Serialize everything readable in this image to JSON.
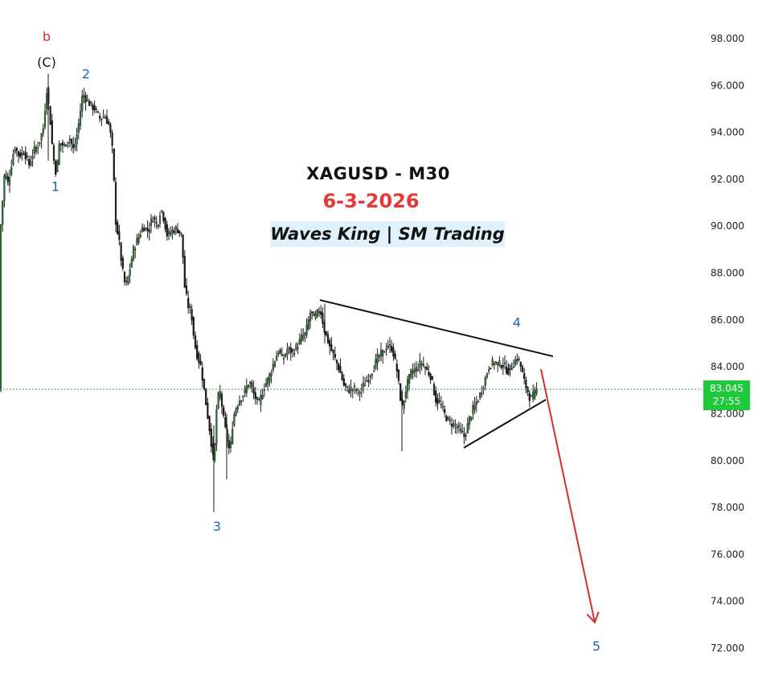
{
  "chart_data": {
    "type": "candlestick",
    "title": "XAGUSD - M30",
    "subtitle": "6-3-2026",
    "watermark": "Waves King | SM Trading",
    "ylim": [
      71.2,
      99.4
    ],
    "y_ticks": [
      "98.000",
      "96.000",
      "94.000",
      "92.000",
      "90.000",
      "88.000",
      "86.000",
      "84.000",
      "82.000",
      "80.000",
      "78.000",
      "76.000",
      "74.000",
      "72.000"
    ],
    "y_tick_values": [
      98,
      96,
      94,
      92,
      90,
      88,
      86,
      84,
      82,
      80,
      78,
      76,
      74,
      72
    ],
    "current_price": {
      "value": 83.045,
      "label": "83.045",
      "countdown": "27:55"
    },
    "price_path": [
      [
        0,
        89.6
      ],
      [
        6,
        92.4
      ],
      [
        10,
        91.8
      ],
      [
        18,
        93.4
      ],
      [
        24,
        93.0
      ],
      [
        30,
        93.2
      ],
      [
        36,
        92.6
      ],
      [
        42,
        93.2
      ],
      [
        48,
        93.5
      ],
      [
        54,
        94.2
      ],
      [
        58,
        95.9
      ],
      [
        62,
        94.7
      ],
      [
        66,
        93.0
      ],
      [
        70,
        92.2
      ],
      [
        74,
        93.6
      ],
      [
        80,
        93.4
      ],
      [
        86,
        93.8
      ],
      [
        92,
        93.2
      ],
      [
        98,
        94.4
      ],
      [
        103,
        95.7
      ],
      [
        107,
        95.4
      ],
      [
        112,
        95.2
      ],
      [
        118,
        95.0
      ],
      [
        124,
        94.6
      ],
      [
        130,
        94.7
      ],
      [
        136,
        94.3
      ],
      [
        140,
        93.2
      ],
      [
        144,
        90.2
      ],
      [
        148,
        89.4
      ],
      [
        152,
        88.2
      ],
      [
        156,
        87.4
      ],
      [
        160,
        87.9
      ],
      [
        166,
        89.0
      ],
      [
        172,
        89.5
      ],
      [
        178,
        90.0
      ],
      [
        184,
        89.8
      ],
      [
        190,
        90.4
      ],
      [
        196,
        90.0
      ],
      [
        200,
        90.8
      ],
      [
        204,
        90.3
      ],
      [
        208,
        89.6
      ],
      [
        214,
        89.8
      ],
      [
        220,
        89.9
      ],
      [
        226,
        89.6
      ],
      [
        230,
        87.3
      ],
      [
        234,
        86.6
      ],
      [
        238,
        86.3
      ],
      [
        242,
        85.0
      ],
      [
        246,
        84.4
      ],
      [
        250,
        84.0
      ],
      [
        254,
        83.0
      ],
      [
        258,
        82.0
      ],
      [
        262,
        81.0
      ],
      [
        266,
        79.8
      ],
      [
        270,
        82.6
      ],
      [
        274,
        82.9
      ],
      [
        278,
        81.8
      ],
      [
        282,
        81.0
      ],
      [
        286,
        80.3
      ],
      [
        290,
        81.8
      ],
      [
        294,
        82.3
      ],
      [
        298,
        82.6
      ],
      [
        304,
        82.9
      ],
      [
        310,
        83.4
      ],
      [
        316,
        82.8
      ],
      [
        322,
        82.4
      ],
      [
        328,
        83.1
      ],
      [
        334,
        83.5
      ],
      [
        340,
        84.1
      ],
      [
        346,
        84.7
      ],
      [
        352,
        84.3
      ],
      [
        358,
        84.8
      ],
      [
        364,
        84.6
      ],
      [
        370,
        84.9
      ],
      [
        376,
        85.3
      ],
      [
        380,
        85.4
      ],
      [
        386,
        86.3
      ],
      [
        392,
        86.1
      ],
      [
        398,
        86.5
      ],
      [
        404,
        85.5
      ],
      [
        410,
        84.9
      ],
      [
        416,
        84.4
      ],
      [
        422,
        83.9
      ],
      [
        428,
        83.2
      ],
      [
        434,
        83.0
      ],
      [
        440,
        83.1
      ],
      [
        446,
        82.9
      ],
      [
        452,
        83.2
      ],
      [
        458,
        83.5
      ],
      [
        464,
        83.9
      ],
      [
        470,
        84.4
      ],
      [
        476,
        84.6
      ],
      [
        482,
        84.9
      ],
      [
        488,
        84.8
      ],
      [
        494,
        83.8
      ],
      [
        500,
        82.2
      ],
      [
        506,
        83.2
      ],
      [
        512,
        83.8
      ],
      [
        518,
        83.9
      ],
      [
        524,
        84.2
      ],
      [
        530,
        83.9
      ],
      [
        536,
        83.6
      ],
      [
        542,
        82.6
      ],
      [
        548,
        82.4
      ],
      [
        554,
        81.9
      ],
      [
        560,
        81.6
      ],
      [
        566,
        81.5
      ],
      [
        572,
        81.3
      ],
      [
        578,
        81.0
      ],
      [
        584,
        81.8
      ],
      [
        590,
        82.3
      ],
      [
        596,
        82.7
      ],
      [
        602,
        83.3
      ],
      [
        608,
        84.0
      ],
      [
        614,
        84.2
      ],
      [
        620,
        84.1
      ],
      [
        626,
        84.1
      ],
      [
        632,
        83.8
      ],
      [
        638,
        84.1
      ],
      [
        644,
        84.4
      ],
      [
        648,
        84.0
      ],
      [
        652,
        83.4
      ],
      [
        656,
        83.0
      ],
      [
        660,
        82.6
      ],
      [
        664,
        82.8
      ],
      [
        668,
        83.0
      ]
    ],
    "annotations": {
      "wave_labels": [
        {
          "text": "b",
          "x": 58,
          "price": 97.9,
          "color": "#d32f2f"
        },
        {
          "text": "(C)",
          "x": 58,
          "price": 96.8,
          "color": "#111111"
        },
        {
          "text": "2",
          "x": 107,
          "price": 96.3,
          "color": "#1e63c5"
        },
        {
          "text": "1",
          "x": 69,
          "price": 91.5,
          "color": "#1e63c5"
        },
        {
          "text": "3",
          "x": 270,
          "price": 77.0,
          "color": "#1e63c5"
        },
        {
          "text": "4",
          "x": 643,
          "price": 85.7,
          "color": "#1e63c5"
        },
        {
          "text": "5",
          "x": 742,
          "price": 71.9,
          "color": "#1e63c5"
        }
      ],
      "triangle_upper": [
        [
          398,
          86.85
        ],
        [
          688,
          84.45
        ]
      ],
      "triangle_lower": [
        [
          577,
          80.55
        ],
        [
          679,
          82.6
        ]
      ],
      "projection_arrow": {
        "from": [
          673,
          83.9
        ],
        "to": [
          740,
          73.1
        ],
        "color": "#d32f2f"
      }
    },
    "colors": {
      "candle": "#1a1a1a",
      "candle_fill_up": "#2e7d32",
      "title_date": "#e53935",
      "watermark_bg": "#dff1fa",
      "price_badge": "#1ec93a",
      "price_line": "#43a047",
      "wave_blue": "#1e63c5",
      "wave_red": "#d32f2f"
    }
  }
}
